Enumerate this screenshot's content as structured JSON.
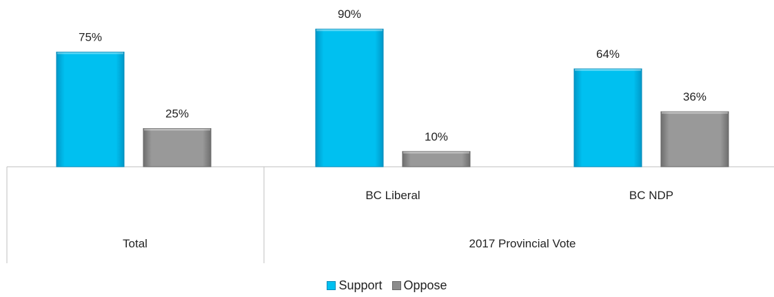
{
  "chart_data": {
    "type": "bar",
    "title": "",
    "xlabel": "",
    "ylabel": "",
    "ylim": [
      0,
      100
    ],
    "value_suffix": "%",
    "groups": [
      {
        "label": "Total",
        "parent": ""
      },
      {
        "label": "BC Liberal",
        "parent": "2017 Provincial Vote"
      },
      {
        "label": "BC NDP",
        "parent": "2017 Provincial Vote"
      }
    ],
    "parent_groups": [
      {
        "label": "Total"
      },
      {
        "label": "2017 Provincial Vote"
      }
    ],
    "series": [
      {
        "name": "Support",
        "values": [
          75,
          90,
          64
        ],
        "color": "#00c0f0"
      },
      {
        "name": "Oppose",
        "values": [
          25,
          10,
          36
        ],
        "color": "#8c8c8c"
      }
    ],
    "legend_position": "bottom",
    "grid": false
  }
}
